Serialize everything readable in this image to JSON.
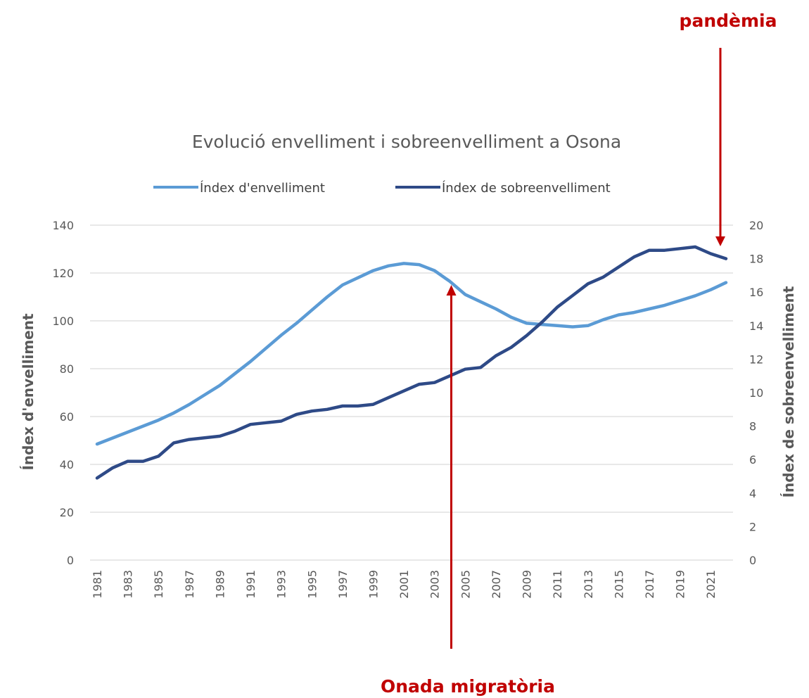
{
  "chart_data": {
    "type": "line",
    "title": "Evolució envelliment i sobreenvelliment a Osona",
    "ylabel_left": "Índex d'envelliment",
    "ylabel_right": "Índex de sobreenvelliment",
    "ylim_left": [
      0,
      140
    ],
    "ylim_right": [
      0,
      20
    ],
    "yticks_left": [
      "0",
      "20",
      "40",
      "60",
      "80",
      "100",
      "120",
      "140"
    ],
    "yticks_right": [
      "0",
      "2",
      "4",
      "6",
      "8",
      "10",
      "12",
      "14",
      "16",
      "18",
      "20"
    ],
    "x_tick_labels": [
      "1981",
      "1983",
      "1985",
      "1987",
      "1989",
      "1991",
      "1993",
      "1995",
      "1997",
      "1999",
      "2001",
      "2003",
      "2005",
      "2007",
      "2009",
      "2011",
      "2013",
      "2015",
      "2017",
      "2019",
      "2021"
    ],
    "legend_position": "top",
    "grid": true,
    "x": [
      1981,
      1982,
      1983,
      1984,
      1985,
      1986,
      1987,
      1988,
      1989,
      1990,
      1991,
      1992,
      1993,
      1994,
      1995,
      1996,
      1997,
      1998,
      1999,
      2000,
      2001,
      2002,
      2003,
      2004,
      2005,
      2006,
      2007,
      2008,
      2009,
      2010,
      2011,
      2012,
      2013,
      2014,
      2015,
      2016,
      2017,
      2018,
      2019,
      2020,
      2021,
      2022
    ],
    "series": [
      {
        "name": "Índex d'envelliment",
        "axis": "left",
        "color": "#5b9bd5",
        "values": [
          48.5,
          51,
          53.5,
          56,
          58.5,
          61.5,
          65,
          69,
          73,
          78,
          83,
          88.5,
          94,
          99,
          104.5,
          110,
          115,
          118,
          121,
          123,
          124,
          123.5,
          121,
          116.5,
          111,
          108,
          105,
          101.5,
          99,
          98.5,
          98,
          97.5,
          98,
          100.5,
          102.5,
          103.5,
          105,
          106.5,
          108.5,
          110.5,
          113,
          116
        ]
      },
      {
        "name": "Índex de sobreenvelliment",
        "axis": "right",
        "color": "#2e4a87",
        "values": [
          4.9,
          5.5,
          5.9,
          5.9,
          6.2,
          7.0,
          7.2,
          7.3,
          7.4,
          7.7,
          8.1,
          8.2,
          8.3,
          8.7,
          8.9,
          9.0,
          9.2,
          9.2,
          9.3,
          9.7,
          10.1,
          10.5,
          10.6,
          11.0,
          11.4,
          11.5,
          12.2,
          12.7,
          13.4,
          14.2,
          15.1,
          15.8,
          16.5,
          16.9,
          17.5,
          18.1,
          18.5,
          18.5,
          18.6,
          18.7,
          18.3,
          18.0
        ]
      }
    ],
    "annotations": [
      {
        "text": "pandèmia",
        "x": 2022,
        "color": "#c00000"
      },
      {
        "text": "Onada migratòria",
        "x": 2004,
        "color": "#c00000"
      }
    ]
  }
}
